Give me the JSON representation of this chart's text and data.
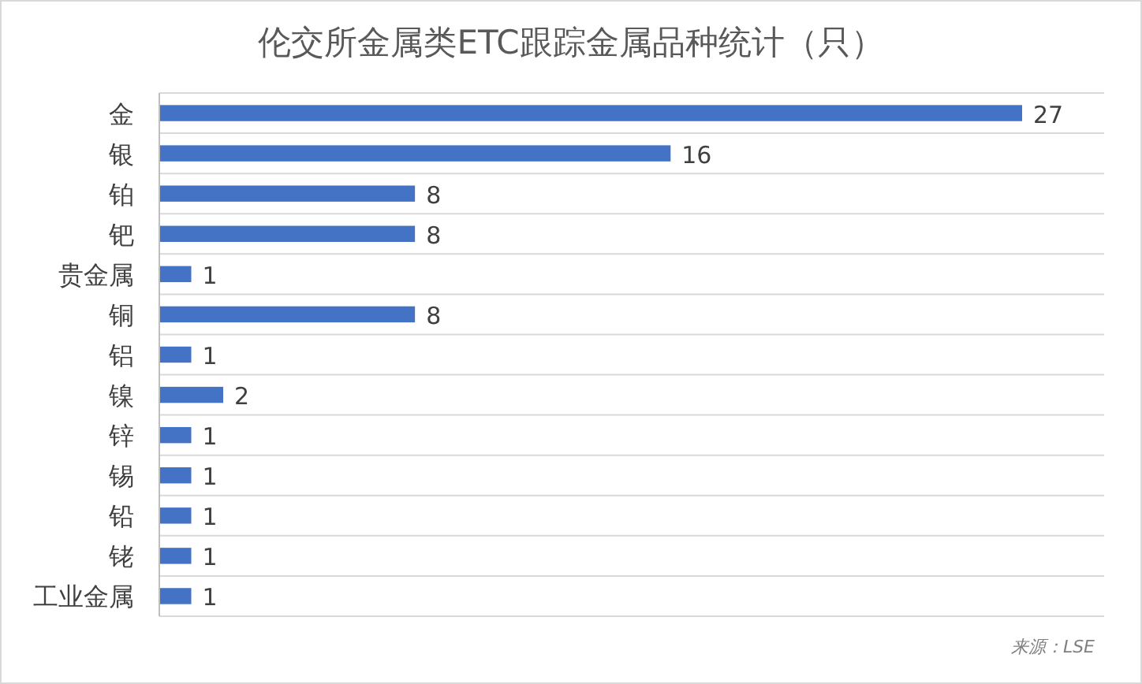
{
  "chart_data": {
    "type": "bar",
    "orientation": "horizontal",
    "title": "伦交所金属类ETC跟踪金属品种统计（只）",
    "categories": [
      "金",
      "银",
      "铂",
      "钯",
      "贵金属",
      "铜",
      "铝",
      "镍",
      "锌",
      "锡",
      "铅",
      "铑",
      "工业金属"
    ],
    "values": [
      27,
      16,
      8,
      8,
      1,
      8,
      1,
      2,
      1,
      1,
      1,
      1,
      1
    ],
    "color": "#4472c4",
    "data_labels": true,
    "grid": "y",
    "annotations": [
      "来源：LSE"
    ]
  }
}
